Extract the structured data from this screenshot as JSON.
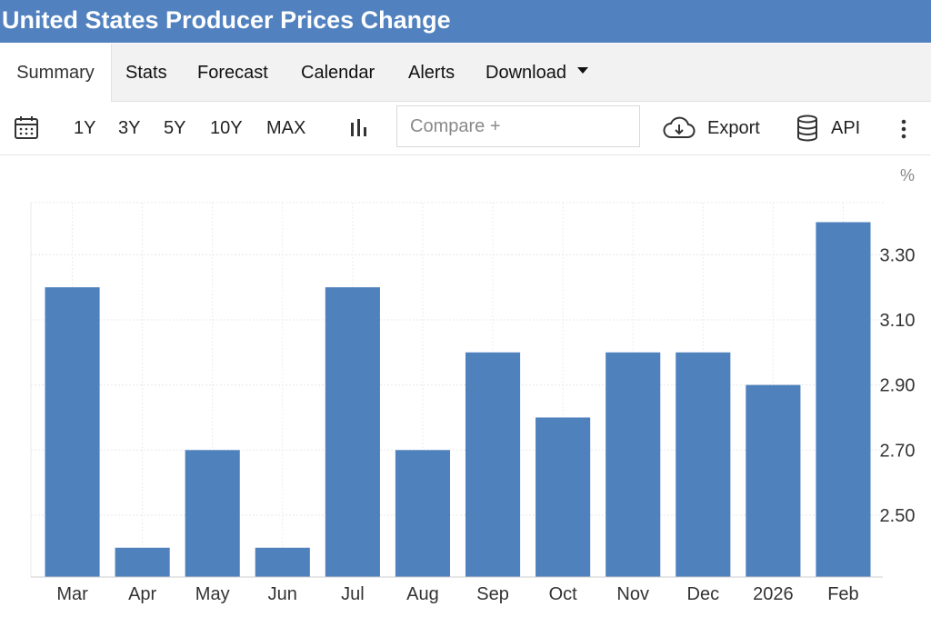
{
  "header": {
    "title": "United States Producer Prices Change"
  },
  "tabs": [
    {
      "label": "Summary"
    },
    {
      "label": "Stats"
    },
    {
      "label": "Forecast"
    },
    {
      "label": "Calendar"
    },
    {
      "label": "Alerts"
    },
    {
      "label": "Download"
    }
  ],
  "toolbar": {
    "ranges": [
      "1Y",
      "3Y",
      "5Y",
      "10Y",
      "MAX"
    ],
    "compare_placeholder": "Compare +",
    "export_label": "Export",
    "api_label": "API",
    "icons": [
      "calendar-icon",
      "bar-chart-icon",
      "cloud-download-icon",
      "database-icon",
      "more-vertical-icon"
    ]
  },
  "chart_data": {
    "type": "bar",
    "unit": "%",
    "categories": [
      "Mar",
      "Apr",
      "May",
      "Jun",
      "Jul",
      "Aug",
      "Sep",
      "Oct",
      "Nov",
      "Dec",
      "2026",
      "Feb"
    ],
    "values": [
      3.2,
      2.4,
      2.7,
      2.4,
      3.2,
      2.7,
      3.0,
      2.8,
      3.0,
      3.0,
      2.9,
      3.4
    ],
    "yticks": [
      "2.50",
      "2.70",
      "2.90",
      "3.10",
      "3.30"
    ],
    "ylim": [
      2.31,
      3.46
    ],
    "grid": true,
    "color": "#4f81bd"
  }
}
